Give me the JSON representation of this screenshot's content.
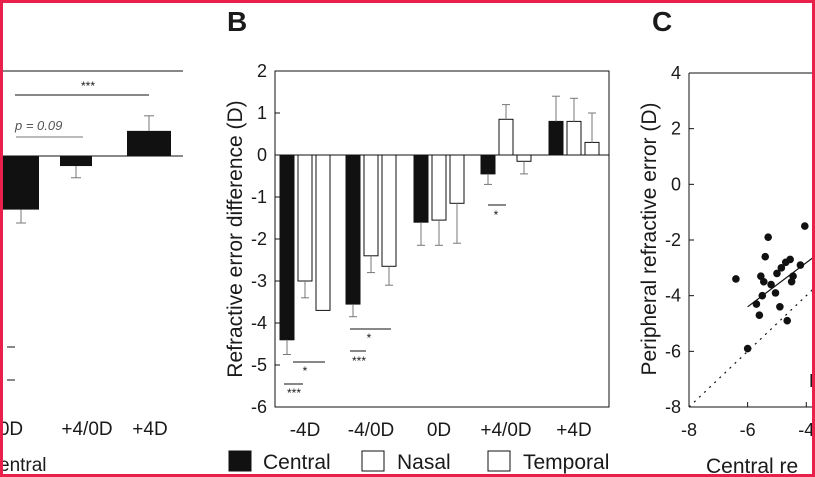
{
  "figure": {
    "panel_labels": [
      "B",
      "C"
    ],
    "legend": [
      {
        "name": "Central",
        "fill": "#111111"
      },
      {
        "name": "Nasal",
        "fill": "#ffffff"
      },
      {
        "name": "Temporal",
        "fill": "#ffffff"
      }
    ],
    "colors": {
      "frame": "#e8204a",
      "ink": "#111111",
      "error": "#777777"
    }
  },
  "chart_data": [
    {
      "panel": "A (partial, cropped)",
      "type": "bar",
      "categories": [
        "0D",
        "+4/0D",
        "+4D"
      ],
      "category_label_fragment": "entral",
      "values": [
        -1.6,
        -0.3,
        0.75
      ],
      "errors": [
        0.4,
        0.35,
        0.45
      ],
      "ylim": [
        -6,
        2
      ],
      "annotations": [
        {
          "text": "p = 0.09",
          "between": [
            "0D",
            "+4/0D"
          ]
        },
        {
          "text": "***",
          "between": [
            "0D",
            "+4D"
          ]
        }
      ]
    },
    {
      "panel": "B",
      "type": "bar",
      "ylabel": "Refractive error difference (D)",
      "ylim": [
        -6,
        2
      ],
      "yticks": [
        "2",
        "1",
        "0",
        "-1",
        "-2",
        "-3",
        "-4",
        "-5",
        "-6"
      ],
      "categories": [
        "-4D",
        "-4/0D",
        "0D",
        "+4/0D",
        "+4D"
      ],
      "series": [
        {
          "name": "Central",
          "values": [
            -4.4,
            -3.55,
            -1.6,
            -0.45,
            0.8
          ],
          "errors": [
            0.35,
            0.3,
            0.55,
            0.25,
            0.6
          ]
        },
        {
          "name": "Nasal",
          "values": [
            -3.0,
            -2.4,
            -1.55,
            0.85,
            0.8
          ],
          "errors": [
            0.4,
            0.4,
            0.6,
            0.35,
            0.55
          ]
        },
        {
          "name": "Temporal",
          "values": [
            -3.7,
            -2.65,
            -1.15,
            -0.15,
            0.3
          ],
          "errors": [
            0.0,
            0.45,
            0.95,
            0.3,
            0.7
          ]
        }
      ],
      "significance": [
        {
          "text": "*",
          "category": "-4D",
          "pair": [
            "Central",
            "Temporal"
          ]
        },
        {
          "text": "***",
          "category": "-4D",
          "pair": [
            "Central",
            "Nasal"
          ]
        },
        {
          "text": "*",
          "category": "-4/0D",
          "pair": [
            "Central",
            "Temporal"
          ]
        },
        {
          "text": "***",
          "category": "-4/0D",
          "pair": [
            "Central",
            "Nasal"
          ]
        },
        {
          "text": "*",
          "category": "+4/0D",
          "pair": [
            "Central",
            "Nasal"
          ]
        }
      ]
    },
    {
      "panel": "C",
      "type": "scatter",
      "ylabel": "Peripheral refractive error (D)",
      "xlabel_fragment": "Central re",
      "xticks": [
        "-8",
        "-6",
        "-4"
      ],
      "yticks": [
        "4",
        "2",
        "0",
        "-2",
        "-4",
        "-6",
        "-8"
      ],
      "xlim": [
        -8,
        -3.6
      ],
      "ylim": [
        -8,
        4
      ],
      "points": [
        {
          "x": -6.4,
          "y": -3.4
        },
        {
          "x": -6.0,
          "y": -5.9
        },
        {
          "x": -5.7,
          "y": -4.3
        },
        {
          "x": -5.6,
          "y": -4.7
        },
        {
          "x": -5.55,
          "y": -3.3
        },
        {
          "x": -5.5,
          "y": -4.0
        },
        {
          "x": -5.45,
          "y": -3.5
        },
        {
          "x": -5.4,
          "y": -2.6
        },
        {
          "x": -5.3,
          "y": -1.9
        },
        {
          "x": -5.2,
          "y": -3.6
        },
        {
          "x": -5.05,
          "y": -3.9
        },
        {
          "x": -5.0,
          "y": -3.2
        },
        {
          "x": -4.9,
          "y": -4.4
        },
        {
          "x": -4.85,
          "y": -3.0
        },
        {
          "x": -4.7,
          "y": -2.8
        },
        {
          "x": -4.65,
          "y": -4.9
        },
        {
          "x": -4.55,
          "y": -2.7
        },
        {
          "x": -4.5,
          "y": -3.5
        },
        {
          "x": -4.45,
          "y": -3.3
        },
        {
          "x": -4.2,
          "y": -2.9
        },
        {
          "x": -4.05,
          "y": -1.5
        }
      ],
      "fit_line": {
        "x": [
          -6.0,
          -3.6
        ],
        "y": [
          -4.4,
          -2.5
        ]
      },
      "identity_line": {
        "x": [
          -8,
          -3.6
        ],
        "y": [
          -8,
          -3.6
        ]
      },
      "annotation_fragment": "R"
    }
  ]
}
